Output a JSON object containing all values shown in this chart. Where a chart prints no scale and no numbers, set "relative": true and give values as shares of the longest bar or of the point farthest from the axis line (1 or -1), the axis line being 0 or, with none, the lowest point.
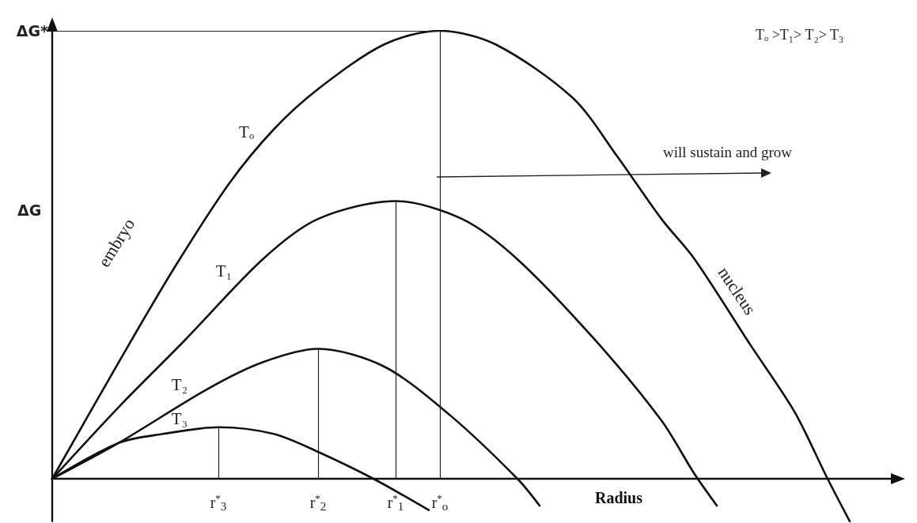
{
  "chart_data": {
    "type": "line",
    "relative": true,
    "xlabel": "Radius",
    "ylabel": "ΔG",
    "legend": false,
    "marker": "none",
    "line_style": "solid",
    "categories": [
      null,
      null,
      null,
      null,
      null,
      null,
      null,
      null,
      null,
      null,
      null,
      null,
      null,
      null,
      null,
      "r$^{*}$$_{3}$",
      null,
      null,
      null,
      null,
      null,
      null,
      null,
      null,
      "r$^{*}$$_{2}$",
      null,
      null,
      null,
      null,
      null,
      null,
      "r$^{*}$$_{1}$",
      null,
      null,
      null,
      "r$^{*}$$_{o}$",
      null,
      null,
      null,
      null,
      null,
      null,
      null,
      null,
      null,
      null,
      null,
      null,
      null,
      null,
      null,
      null,
      null,
      null,
      null,
      null,
      null,
      null,
      null,
      null,
      null,
      null,
      null,
      null,
      null,
      null,
      null,
      null,
      null,
      null,
      null,
      null,
      null,
      null,
      null,
      null,
      null
    ],
    "series": [
      {
        "name": "Tₒ",
        "color": "#111111",
        "values": [
          0,
          null,
          null,
          null,
          null,
          null,
          0.26,
          null,
          null,
          null,
          null,
          0.47,
          null,
          null,
          null,
          null,
          0.66,
          null,
          null,
          null,
          0.78,
          null,
          null,
          null,
          0.87,
          null,
          null,
          null,
          null,
          null,
          0.97,
          null,
          null,
          null,
          null,
          1,
          null,
          null,
          null,
          null,
          0.97,
          null,
          null,
          null,
          null,
          null,
          null,
          0.85,
          null,
          null,
          null,
          0.72,
          null,
          null,
          null,
          0.58,
          null,
          null,
          0.49,
          null,
          null,
          null,
          null,
          0.3,
          null,
          null,
          null,
          0.15,
          null,
          null,
          0,
          null,
          -0.095,
          null,
          null,
          null,
          null
        ]
      },
      {
        "name": "T₁",
        "color": "#111111",
        "values": [
          0,
          null,
          null,
          null,
          null,
          null,
          0.16,
          null,
          null,
          null,
          null,
          null,
          0.31,
          null,
          null,
          null,
          null,
          null,
          null,
          0.49,
          null,
          null,
          null,
          null,
          0.58,
          null,
          null,
          null,
          null,
          null,
          null,
          0.62,
          null,
          null,
          null,
          null,
          null,
          0.58,
          null,
          null,
          null,
          null,
          0.49,
          null,
          null,
          null,
          null,
          null,
          null,
          0.31,
          null,
          null,
          null,
          null,
          null,
          0.13,
          null,
          null,
          0.01,
          null,
          -0.06,
          null,
          null,
          null,
          null,
          null,
          null,
          null,
          null,
          null,
          null,
          null,
          null,
          null,
          null,
          null,
          null
        ]
      },
      {
        "name": "T₂",
        "color": "#111111",
        "values": [
          0,
          null,
          null,
          null,
          null,
          null,
          0.08,
          null,
          null,
          null,
          null,
          null,
          null,
          null,
          0.2,
          null,
          null,
          null,
          null,
          0.26,
          null,
          null,
          null,
          null,
          0.29,
          null,
          null,
          null,
          null,
          null,
          0.25,
          null,
          null,
          null,
          null,
          null,
          0.14,
          null,
          null,
          null,
          null,
          null,
          0,
          null,
          -0.06,
          null,
          null,
          null,
          null,
          null,
          null,
          null,
          null,
          null,
          null,
          null,
          null,
          null,
          null,
          null,
          null,
          null,
          null,
          null,
          null,
          null,
          null,
          null,
          null,
          null,
          null,
          null,
          null,
          null,
          null,
          null,
          null
        ]
      },
      {
        "name": "T₃",
        "color": "#111111",
        "values": [
          0,
          null,
          null,
          null,
          null,
          null,
          0.08,
          null,
          null,
          null,
          0.1,
          null,
          null,
          null,
          null,
          0.115,
          null,
          null,
          null,
          null,
          0.1,
          null,
          null,
          null,
          0.06,
          null,
          null,
          null,
          null,
          0,
          null,
          null,
          null,
          null,
          -0.07,
          null,
          null,
          null,
          null,
          null,
          null,
          null,
          null,
          null,
          null,
          null,
          null,
          null,
          null,
          null,
          null,
          null,
          null,
          null,
          null,
          null,
          null,
          null,
          null,
          null,
          null,
          null,
          null,
          null,
          null,
          null,
          null,
          null,
          null,
          null,
          null,
          null,
          null,
          null,
          null,
          null,
          null
        ]
      }
    ],
    "ref_lines": [
      {
        "axis": "y",
        "value": 1,
        "label": "ΔG*"
      },
      {
        "axis": "x",
        "value": "r$^{*}$$_{3}$",
        "label": null
      },
      {
        "axis": "x",
        "value": "r$^{*}$$_{2}$",
        "label": null
      },
      {
        "axis": "x",
        "value": "r$^{*}$$_{1}$",
        "label": null
      },
      {
        "axis": "x",
        "value": "r$^{*}$$_{o}$",
        "label": null
      }
    ],
    "annotations": [
      "embryo",
      "nucleus",
      "will sustain and grow",
      "Tₒ >T₁> T₂> T₃"
    ]
  }
}
